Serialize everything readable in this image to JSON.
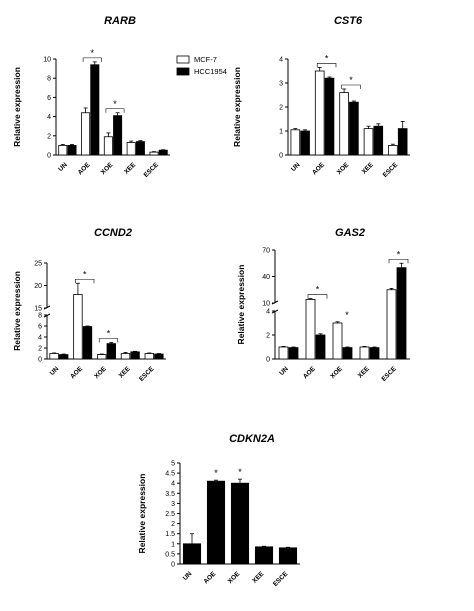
{
  "chart_data": [
    {
      "type": "bar",
      "title": "RARB",
      "ylabel": "Relative expression",
      "categories": [
        "UN",
        "AOE",
        "XOE",
        "XEE",
        "ESCE"
      ],
      "ylim": [
        0,
        10
      ],
      "yticks": [
        "0",
        "2",
        "4",
        "6",
        "8",
        "10"
      ],
      "series": [
        {
          "name": "MCF-7",
          "values": [
            1.0,
            4.4,
            1.9,
            1.3,
            0.3
          ],
          "errors": [
            0.1,
            0.5,
            0.4,
            0.15,
            0.05
          ]
        },
        {
          "name": "HCC1954",
          "values": [
            1.0,
            9.4,
            4.1,
            1.4,
            0.5
          ],
          "errors": [
            0.1,
            0.3,
            0.3,
            0.1,
            0.05
          ]
        }
      ],
      "significance": [
        {
          "categories": [
            "AOE"
          ],
          "label": "*"
        },
        {
          "categories": [
            "XOE"
          ],
          "label": "*"
        }
      ],
      "legend": "top-right"
    },
    {
      "type": "bar",
      "title": "CST6",
      "ylabel": "Relative expression",
      "categories": [
        "UN",
        "AOE",
        "XOE",
        "XEE",
        "ESCE"
      ],
      "ylim": [
        0,
        4
      ],
      "yticks": [
        "0",
        "1",
        "2",
        "3",
        "4"
      ],
      "series": [
        {
          "name": "MCF-7",
          "values": [
            1.05,
            3.5,
            2.6,
            1.1,
            0.4
          ],
          "errors": [
            0.05,
            0.15,
            0.15,
            0.1,
            0.05
          ]
        },
        {
          "name": "HCC1954",
          "values": [
            1.0,
            3.2,
            2.2,
            1.2,
            1.1
          ],
          "errors": [
            0.05,
            0.05,
            0.05,
            0.1,
            0.3
          ]
        }
      ],
      "significance": [
        {
          "categories": [
            "AOE"
          ],
          "label": "*"
        },
        {
          "categories": [
            "XOE"
          ],
          "label": "*"
        }
      ]
    },
    {
      "type": "bar",
      "title": "CCND2",
      "ylabel": "Relative expression",
      "categories": [
        "UN",
        "AOE",
        "XOE",
        "XEE",
        "ESCE"
      ],
      "axis_break": {
        "lower": [
          0,
          8
        ],
        "upper": [
          15,
          25
        ]
      },
      "yticks_lower": [
        "0",
        "2",
        "4",
        "6",
        "8"
      ],
      "yticks_upper": [
        "15",
        "20",
        "25"
      ],
      "series": [
        {
          "name": "MCF-7",
          "values": [
            1.0,
            18.0,
            0.8,
            1.0,
            1.0
          ],
          "errors": [
            0.1,
            2.5,
            0.1,
            0.2,
            0.1
          ]
        },
        {
          "name": "HCC1954",
          "values": [
            0.8,
            5.9,
            2.8,
            1.3,
            0.9
          ],
          "errors": [
            0.1,
            0.1,
            0.2,
            0.1,
            0.1
          ]
        }
      ],
      "significance": [
        {
          "categories": [
            "AOE"
          ],
          "label": "*"
        },
        {
          "categories": [
            "XOE"
          ],
          "label": "*"
        }
      ]
    },
    {
      "type": "bar",
      "title": "GAS2",
      "ylabel": "Relative expression",
      "categories": [
        "UN",
        "AOE",
        "XOE",
        "XEE",
        "ESCE"
      ],
      "axis_break": {
        "lower": [
          0,
          4
        ],
        "upper": [
          10,
          70
        ]
      },
      "yticks_lower": [
        "0",
        "2",
        "4"
      ],
      "yticks_upper": [
        "10",
        "40",
        "70"
      ],
      "series": [
        {
          "name": "MCF-7",
          "values": [
            1.0,
            14.0,
            3.0,
            1.0,
            25.0
          ],
          "errors": [
            0.05,
            1.0,
            0.1,
            0.05,
            1.5
          ]
        },
        {
          "name": "HCC1954",
          "values": [
            0.95,
            2.0,
            0.95,
            0.95,
            50.0
          ],
          "errors": [
            0.05,
            0.1,
            0.05,
            0.05,
            5.0
          ]
        }
      ],
      "significance": [
        {
          "categories": [
            "AOE"
          ],
          "label": "*"
        },
        {
          "categories": [
            "XOE"
          ],
          "label": "*"
        },
        {
          "categories": [
            "ESCE"
          ],
          "label": "*"
        }
      ]
    },
    {
      "type": "bar",
      "title": "CDKN2A",
      "ylabel": "Relative expression",
      "categories": [
        "UN",
        "AOE",
        "XOE",
        "XEE",
        "ESCE"
      ],
      "ylim": [
        0,
        5
      ],
      "yticks": [
        "0",
        "0.5",
        "1",
        "1.5",
        "2",
        "2.5",
        "3",
        "3.5",
        "4",
        "4.5",
        "5"
      ],
      "series": [
        {
          "name": "HCC1954",
          "values": [
            1.0,
            4.1,
            4.0,
            0.85,
            0.8
          ],
          "errors": [
            0.5,
            0.05,
            0.2,
            0.03,
            0.03
          ]
        }
      ],
      "significance": [
        {
          "categories": [
            "AOE"
          ],
          "label": "*"
        },
        {
          "categories": [
            "XOE"
          ],
          "label": "*"
        }
      ]
    }
  ],
  "colors": {
    "mcf7": "#ffffff",
    "hcc1954": "#000000",
    "axis": "#000000"
  }
}
